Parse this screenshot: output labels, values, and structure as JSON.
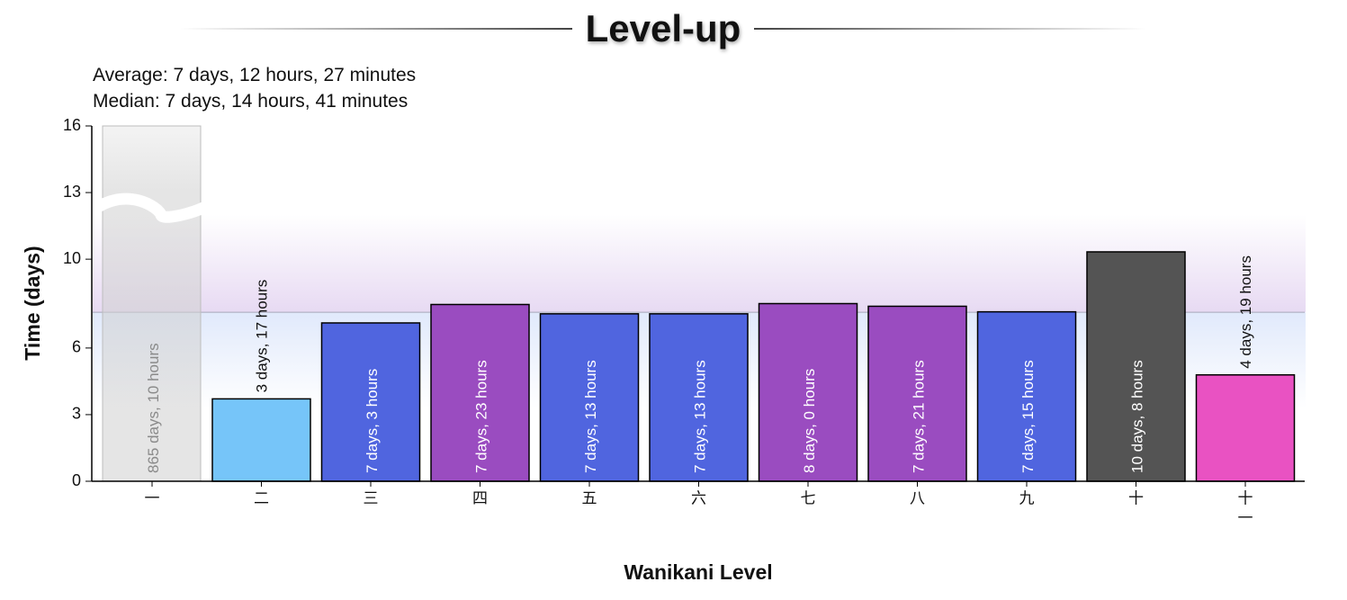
{
  "title": "Level-up",
  "stats": {
    "average": "Average: 7 days, 12 hours, 27 minutes",
    "median": "Median: 7 days, 14 hours, 41 minutes"
  },
  "colors": {
    "average_band_top": "#e6d8f2",
    "average_band_bottom": "#dfe8fb",
    "median_line": "#a8a8b8"
  },
  "chart_data": {
    "type": "bar",
    "xlabel": "Wanikani Level",
    "ylabel": "Time (days)",
    "ylim": [
      0,
      16
    ],
    "yticks": [
      0,
      3,
      6,
      10,
      13,
      16
    ],
    "median_days": 7.61,
    "grid": false,
    "axis_break": true,
    "categories": [
      "一",
      "二",
      "三",
      "四",
      "五",
      "六",
      "七",
      "八",
      "九",
      "十",
      "十一"
    ],
    "values": [
      865.42,
      3.71,
      7.13,
      7.96,
      7.54,
      7.54,
      8.0,
      7.88,
      7.63,
      10.33,
      4.79
    ],
    "labels": [
      "865 days, 10 hours",
      "3 days, 17 hours",
      "7 days, 3 hours",
      "7 days, 23 hours",
      "7 days, 13 hours",
      "7 days, 13 hours",
      "8 days, 0 hours",
      "7 days, 21 hours",
      "7 days, 15 hours",
      "10 days, 8 hours",
      "4 days, 19 hours"
    ],
    "bar_colors": [
      "#c8c8c8",
      "#76c5f9",
      "#5065df",
      "#9a4cc0",
      "#5065df",
      "#5065df",
      "#9a4cc0",
      "#9a4cc0",
      "#5065df",
      "#545454",
      "#e952c2"
    ]
  }
}
